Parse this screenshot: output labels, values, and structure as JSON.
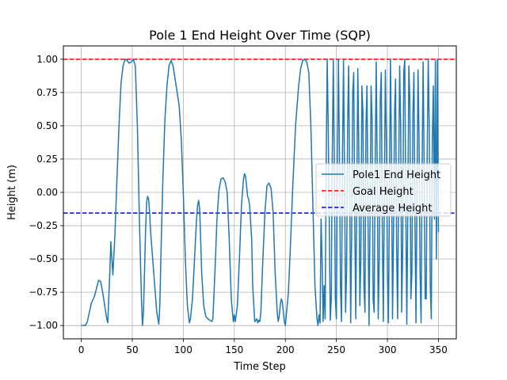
{
  "chart_data": {
    "type": "line",
    "title": "Pole 1 End Height Over Time (SQP)",
    "xlabel": "Time Step",
    "ylabel": "Height (m)",
    "xlim": [
      -17.5,
      367.5
    ],
    "ylim": [
      -1.1,
      1.1
    ],
    "x_ticks": [
      0,
      50,
      100,
      150,
      200,
      250,
      300,
      350
    ],
    "y_ticks": [
      -1.0,
      -0.75,
      -0.5,
      -0.25,
      0.0,
      0.25,
      0.5,
      0.75,
      1.0
    ],
    "x_tick_labels": [
      "0",
      "50",
      "100",
      "150",
      "200",
      "250",
      "300",
      "350"
    ],
    "y_tick_labels": [
      "−1.00",
      "−0.75",
      "−0.50",
      "−0.25",
      "0.00",
      "0.25",
      "0.50",
      "0.75",
      "1.00"
    ],
    "grid": true,
    "legend_position": "center-right",
    "series": [
      {
        "name": "Pole1 End Height",
        "color": "#1f77b4",
        "style": "solid",
        "points": [
          [
            0,
            -1.0
          ],
          [
            4,
            -1.0
          ],
          [
            6,
            -0.97
          ],
          [
            8,
            -0.9
          ],
          [
            10,
            -0.83
          ],
          [
            13,
            -0.78
          ],
          [
            15,
            -0.72
          ],
          [
            17,
            -0.66
          ],
          [
            19,
            -0.67
          ],
          [
            21,
            -0.75
          ],
          [
            23,
            -0.85
          ],
          [
            25,
            -0.95
          ],
          [
            26,
            -0.98
          ],
          [
            28,
            -0.6
          ],
          [
            29,
            -0.37
          ],
          [
            30,
            -0.5
          ],
          [
            31,
            -0.62
          ],
          [
            33,
            -0.32
          ],
          [
            35,
            0.1
          ],
          [
            37,
            0.5
          ],
          [
            39,
            0.82
          ],
          [
            41,
            0.95
          ],
          [
            43,
            1.0
          ],
          [
            45,
            0.99
          ],
          [
            47,
            0.97
          ],
          [
            49,
            0.98
          ],
          [
            51,
            1.0
          ],
          [
            53,
            0.95
          ],
          [
            55,
            0.5
          ],
          [
            57,
            -0.2
          ],
          [
            59,
            -0.8
          ],
          [
            60,
            -1.0
          ],
          [
            61,
            -0.9
          ],
          [
            62,
            -0.6
          ],
          [
            63,
            -0.3
          ],
          [
            64,
            -0.08
          ],
          [
            65,
            -0.03
          ],
          [
            66,
            -0.05
          ],
          [
            67,
            -0.15
          ],
          [
            68,
            -0.3
          ],
          [
            70,
            -0.5
          ],
          [
            72,
            -0.7
          ],
          [
            74,
            -0.9
          ],
          [
            76,
            -0.99
          ],
          [
            77,
            -0.85
          ],
          [
            78,
            -0.5
          ],
          [
            80,
            0.1
          ],
          [
            82,
            0.55
          ],
          [
            84,
            0.8
          ],
          [
            86,
            0.95
          ],
          [
            88,
            0.99
          ],
          [
            90,
            0.95
          ],
          [
            92,
            0.85
          ],
          [
            94,
            0.75
          ],
          [
            96,
            0.65
          ],
          [
            98,
            0.4
          ],
          [
            100,
            0.0
          ],
          [
            102,
            -0.5
          ],
          [
            104,
            -0.85
          ],
          [
            106,
            -0.98
          ],
          [
            107,
            -0.95
          ],
          [
            109,
            -0.8
          ],
          [
            111,
            -0.5
          ],
          [
            113,
            -0.2
          ],
          [
            114,
            -0.1
          ],
          [
            115,
            -0.06
          ],
          [
            116,
            -0.12
          ],
          [
            117,
            -0.35
          ],
          [
            118,
            -0.6
          ],
          [
            120,
            -0.85
          ],
          [
            122,
            -0.93
          ],
          [
            124,
            -0.95
          ],
          [
            126,
            -0.96
          ],
          [
            128,
            -0.97
          ],
          [
            129,
            -0.95
          ],
          [
            131,
            -0.6
          ],
          [
            133,
            -0.2
          ],
          [
            135,
            0.02
          ],
          [
            137,
            0.1
          ],
          [
            139,
            0.11
          ],
          [
            141,
            0.08
          ],
          [
            143,
            0.0
          ],
          [
            145,
            -0.35
          ],
          [
            147,
            -0.8
          ],
          [
            149,
            -0.97
          ],
          [
            150,
            -0.92
          ],
          [
            151,
            -0.97
          ],
          [
            153,
            -0.85
          ],
          [
            155,
            -0.5
          ],
          [
            157,
            -0.1
          ],
          [
            159,
            0.1
          ],
          [
            160,
            0.14
          ],
          [
            161,
            0.12
          ],
          [
            162,
            0.05
          ],
          [
            163,
            -0.03
          ],
          [
            164,
            -0.05
          ],
          [
            165,
            -0.1
          ],
          [
            167,
            -0.35
          ],
          [
            168,
            -0.7
          ],
          [
            170,
            -0.97
          ],
          [
            172,
            -0.95
          ],
          [
            173,
            -0.98
          ],
          [
            174,
            -0.96
          ],
          [
            175,
            -0.97
          ],
          [
            176,
            -0.9
          ],
          [
            178,
            -0.5
          ],
          [
            180,
            -0.15
          ],
          [
            182,
            0.05
          ],
          [
            184,
            0.07
          ],
          [
            186,
            0.03
          ],
          [
            188,
            -0.15
          ],
          [
            190,
            -0.6
          ],
          [
            192,
            -0.9
          ],
          [
            193,
            -0.97
          ],
          [
            194,
            -0.93
          ],
          [
            195,
            -0.85
          ],
          [
            196,
            -0.8
          ],
          [
            197,
            -0.82
          ],
          [
            199,
            -0.97
          ],
          [
            200,
            -1.0
          ],
          [
            203,
            -0.75
          ],
          [
            205,
            -0.4
          ],
          [
            207,
            0.0
          ],
          [
            210,
            0.5
          ],
          [
            213,
            0.8
          ],
          [
            215,
            0.93
          ],
          [
            217,
            0.99
          ],
          [
            219,
            1.0
          ],
          [
            221,
            0.98
          ],
          [
            223,
            0.9
          ],
          [
            225,
            0.5
          ],
          [
            227,
            -0.1
          ],
          [
            229,
            -0.7
          ],
          [
            231,
            -0.95
          ],
          [
            232,
            -1.0
          ],
          [
            233,
            -0.92
          ],
          [
            234,
            -0.98
          ],
          [
            235,
            -0.2
          ],
          [
            236,
            -0.5
          ],
          [
            237,
            -0.97
          ],
          [
            238,
            -0.7
          ],
          [
            239,
            -0.95
          ],
          [
            240,
            0.2
          ],
          [
            241,
            1.0
          ],
          [
            242,
            0.5
          ],
          [
            243,
            -0.2
          ],
          [
            244,
            -0.96
          ],
          [
            245,
            -0.8
          ],
          [
            246,
            0.3
          ],
          [
            247,
            1.0
          ],
          [
            248,
            0.2
          ],
          [
            249,
            -0.8
          ],
          [
            250,
            -0.95
          ],
          [
            251,
            0.2
          ],
          [
            252,
            1.0
          ],
          [
            253,
            0.3
          ],
          [
            254,
            -0.7
          ],
          [
            255,
            -0.97
          ],
          [
            256,
            0.3
          ],
          [
            257,
            0.99
          ],
          [
            258,
            0.1
          ],
          [
            259,
            -0.9
          ],
          [
            260,
            -0.6
          ],
          [
            261,
            0.5
          ],
          [
            262,
            0.95
          ],
          [
            263,
            0.1
          ],
          [
            264,
            -0.98
          ],
          [
            265,
            -0.3
          ],
          [
            266,
            0.75
          ],
          [
            267,
            0.9
          ],
          [
            268,
            -0.2
          ],
          [
            269,
            -0.95
          ],
          [
            270,
            0.0
          ],
          [
            271,
            0.93
          ],
          [
            272,
            0.3
          ],
          [
            273,
            -0.85
          ],
          [
            274,
            -0.5
          ],
          [
            275,
            0.8
          ],
          [
            276,
            0.6
          ],
          [
            277,
            -0.7
          ],
          [
            278,
            -0.9
          ],
          [
            279,
            0.5
          ],
          [
            280,
            0.8
          ],
          [
            281,
            -0.2
          ],
          [
            282,
            -1.0
          ],
          [
            283,
            -0.2
          ],
          [
            284,
            0.8
          ],
          [
            285,
            0.55
          ],
          [
            286,
            -0.8
          ],
          [
            287,
            -0.9
          ],
          [
            288,
            0.2
          ],
          [
            289,
            0.98
          ],
          [
            290,
            0.2
          ],
          [
            291,
            -0.95
          ],
          [
            292,
            -0.5
          ],
          [
            293,
            0.7
          ],
          [
            294,
            0.9
          ],
          [
            295,
            -0.3
          ],
          [
            296,
            -0.97
          ],
          [
            297,
            0.0
          ],
          [
            298,
            0.92
          ],
          [
            299,
            0.4
          ],
          [
            300,
            -0.6
          ],
          [
            301,
            -0.98
          ],
          [
            302,
            0.0
          ],
          [
            303,
            1.0
          ],
          [
            304,
            0.3
          ],
          [
            305,
            -0.95
          ],
          [
            306,
            -0.3
          ],
          [
            307,
            0.6
          ],
          [
            308,
            0.85
          ],
          [
            309,
            -0.4
          ],
          [
            310,
            -0.95
          ],
          [
            311,
            0.1
          ],
          [
            312,
            0.95
          ],
          [
            313,
            0.5
          ],
          [
            314,
            -0.9
          ],
          [
            315,
            -0.4
          ],
          [
            316,
            0.9
          ],
          [
            317,
            1.0
          ],
          [
            318,
            -0.1
          ],
          [
            319,
            -0.99
          ],
          [
            320,
            -0.1
          ],
          [
            321,
            0.95
          ],
          [
            322,
            0.7
          ],
          [
            323,
            -0.8
          ],
          [
            324,
            -0.6
          ],
          [
            325,
            0.6
          ],
          [
            326,
            0.9
          ],
          [
            327,
            -0.2
          ],
          [
            328,
            -0.98
          ],
          [
            329,
            0.0
          ],
          [
            330,
            0.92
          ],
          [
            331,
            0.4
          ],
          [
            332,
            -0.6
          ],
          [
            333,
            -0.98
          ],
          [
            334,
            0.2
          ],
          [
            335,
            0.98
          ],
          [
            336,
            0.2
          ],
          [
            337,
            -0.8
          ],
          [
            338,
            -0.8
          ],
          [
            339,
            0.3
          ],
          [
            340,
            1.0
          ],
          [
            341,
            0.5
          ],
          [
            342,
            -0.7
          ],
          [
            343,
            -0.95
          ],
          [
            344,
            0.4
          ],
          [
            345,
            0.8
          ],
          [
            346,
            -0.2
          ],
          [
            347,
            0.99
          ],
          [
            348,
            -0.5
          ],
          [
            349,
            1.0
          ],
          [
            350,
            -0.3
          ]
        ]
      },
      {
        "name": "Goal Height",
        "color": "#ff0000",
        "style": "dashed",
        "y": 1.0
      },
      {
        "name": "Average Height",
        "color": "#0000ff",
        "style": "dashed",
        "y": -0.155
      }
    ]
  }
}
